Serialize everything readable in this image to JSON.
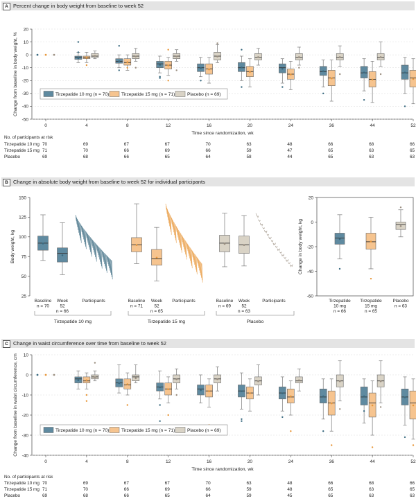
{
  "colors": {
    "tirz10": "#5f8aa0",
    "tirz15": "#f6c48f",
    "placebo": "#d9d3c6",
    "tirz10_dark": "#3a6a80",
    "tirz15_dark": "#e8973a",
    "placebo_dark": "#9a8e80"
  },
  "panels": {
    "a": {
      "letter": "A",
      "title": "Percent change in body weight from baseline to week 52"
    },
    "b": {
      "letter": "B",
      "title": "Change in absolute body weight from baseline to week 52 for individual participants"
    },
    "c": {
      "letter": "C",
      "title": "Change in waist circumference over time from baseline to week 52"
    }
  },
  "risk": {
    "header": "No. of participants at risk",
    "panel_a": [
      {
        "label": "Tirzepatide 10 mg",
        "values": [
          "70",
          "69",
          "67",
          "67",
          "70",
          "63",
          "48",
          "66",
          "68",
          "66"
        ]
      },
      {
        "label": "Tirzepatide 15 mg",
        "values": [
          "71",
          "70",
          "66",
          "69",
          "66",
          "59",
          "47",
          "65",
          "63",
          "65"
        ]
      },
      {
        "label": "Placebo",
        "values": [
          "69",
          "68",
          "66",
          "65",
          "64",
          "58",
          "44",
          "65",
          "63",
          "63"
        ]
      }
    ],
    "panel_c": [
      {
        "label": "Tirzepatide 10 mg",
        "values": [
          "70",
          "69",
          "67",
          "67",
          "70",
          "63",
          "48",
          "66",
          "68",
          "66"
        ]
      },
      {
        "label": "Tirzepatide 15 mg",
        "values": [
          "71",
          "70",
          "66",
          "69",
          "66",
          "59",
          "48",
          "65",
          "63",
          "65"
        ]
      },
      {
        "label": "Placebo",
        "values": [
          "69",
          "68",
          "66",
          "65",
          "64",
          "59",
          "45",
          "65",
          "63",
          "63"
        ]
      }
    ]
  },
  "chart_data": [
    {
      "id": "a",
      "type": "box",
      "title": "Percent change in body weight from baseline to week 52",
      "ylabel": "Change from baseline in body weight, %",
      "xlabel": "Time since randomization, wk",
      "ylim": [
        -50,
        20
      ],
      "yticks": [
        20,
        10,
        0,
        -10,
        -20,
        -30,
        -40,
        -50
      ],
      "categories": [
        "0",
        "4",
        "8",
        "12",
        "16",
        "20",
        "24",
        "36",
        "44",
        "52"
      ],
      "legend": [
        "Tirzepatide 10 mg (n = 70)",
        "Tirzepatide 15 mg (n = 71)",
        "Placebo (n = 69)"
      ],
      "series": [
        {
          "name": "Tirzepatide 10 mg",
          "boxes": [
            [
              0,
              0,
              0,
              0,
              0
            ],
            [
              -6,
              -3.5,
              -2,
              -1,
              2
            ],
            [
              -10,
              -6.5,
              -5,
              -3,
              0
            ],
            [
              -14,
              -10,
              -7,
              -5,
              -1
            ],
            [
              -17,
              -13,
              -10,
              -7,
              -2
            ],
            [
              -20,
              -13,
              -10,
              -6,
              -1
            ],
            [
              -22,
              -14,
              -10,
              -7,
              -3
            ],
            [
              -25,
              -16,
              -13,
              -9,
              -4
            ],
            [
              -28,
              -18,
              -14,
              -9,
              -3
            ],
            [
              -30,
              -19,
              -14,
              -8,
              -2
            ]
          ],
          "outliers": [
            [
              [
                0,
                0
              ]
            ],
            [
              [
                0.0,
                10
              ],
              [
                0.0,
                2
              ]
            ],
            [
              [
                0.0,
                -12
              ],
              [
                0.0,
                7
              ]
            ],
            [
              [
                0,
                -18
              ],
              [
                0,
                -17
              ]
            ],
            [
              [
                0,
                -20
              ]
            ],
            [
              [
                0,
                -25
              ],
              [
                0,
                4
              ]
            ],
            [
              [
                0,
                -25
              ]
            ],
            [
              [
                0,
                -30
              ]
            ],
            [
              [
                0,
                -35
              ]
            ],
            [
              [
                0,
                -40
              ]
            ]
          ]
        },
        {
          "name": "Tirzepatide 15 mg",
          "boxes": [
            [
              0,
              0,
              0,
              0,
              0
            ],
            [
              -6,
              -3,
              -2,
              -1,
              2
            ],
            [
              -12,
              -8,
              -6,
              -3,
              0
            ],
            [
              -16,
              -11,
              -8,
              -5,
              -2
            ],
            [
              -22,
              -15,
              -11,
              -7,
              -2
            ],
            [
              -25,
              -17,
              -13,
              -9,
              -3
            ],
            [
              -27,
              -19,
              -15,
              -11,
              -5
            ],
            [
              -36,
              -24,
              -18,
              -12,
              -4
            ],
            [
              -37,
              -25,
              -19,
              -13,
              -5
            ],
            [
              -38,
              -25,
              -18,
              -12,
              -3
            ]
          ],
          "outliers": [
            [],
            [
              [
                0,
                -8
              ]
            ],
            [
              [
                0,
                -10
              ]
            ],
            [
              [
                0,
                4
              ],
              [
                0,
                -20
              ]
            ],
            [],
            [],
            [],
            [],
            [],
            []
          ]
        },
        {
          "name": "Placebo",
          "boxes": [
            [
              0,
              0,
              0,
              0,
              0
            ],
            [
              -3,
              -2,
              -1,
              1,
              3
            ],
            [
              -5,
              -3,
              -1,
              1,
              5
            ],
            [
              -5,
              -3,
              -1,
              1,
              4
            ],
            [
              -6,
              -4,
              -1,
              2,
              8
            ],
            [
              -8,
              -4,
              -2,
              1,
              5
            ],
            [
              -8,
              -4,
              -2,
              1,
              6
            ],
            [
              -9,
              -4,
              -2,
              1,
              7
            ],
            [
              -9,
              -4,
              -2,
              1,
              10
            ],
            [
              -12,
              -5,
              -2,
              2,
              10
            ]
          ],
          "outliers": [
            [],
            [],
            [
              [
                0,
                -10
              ]
            ],
            [
              [
                0,
                -12
              ]
            ],
            [
              [
                0,
                9
              ]
            ],
            [],
            [
              [
                0,
                -10
              ]
            ],
            [
              [
                0,
                -15
              ]
            ],
            [
              [
                0,
                -15
              ]
            ],
            [
              [
                0,
                16
              ],
              [
                0,
                -14
              ]
            ]
          ]
        }
      ]
    },
    {
      "id": "b1",
      "type": "box+lines",
      "ylabel": "Body weight, kg",
      "ylim": [
        25,
        150
      ],
      "yticks": [
        150,
        125,
        100,
        75,
        50,
        25
      ],
      "x_labels": [
        "Baseline\nn = 70",
        "Week\n52\nn = 66",
        "Participants",
        "Baseline\nn = 71",
        "Week\n52\nn = 65",
        "Participants",
        "Baseline\nn = 69",
        "Week\n52\nn = 63",
        "Participants"
      ],
      "groups": [
        "Tirzepatide 10 mg",
        "Tirzepatide 15 mg",
        "Placebo"
      ],
      "boxes": [
        {
          "group": "Tirzepatide 10 mg",
          "baseline": [
            70,
            83,
            92,
            101,
            128
          ],
          "week52": [
            52,
            68,
            79,
            86,
            118
          ]
        },
        {
          "group": "Tirzepatide 15 mg",
          "baseline": [
            66,
            81,
            90,
            99,
            142
          ],
          "week52": [
            44,
            64,
            72,
            84,
            112
          ]
        },
        {
          "group": "Placebo",
          "baseline": [
            62,
            81,
            92,
            102,
            130
          ],
          "week52": [
            63,
            79,
            90,
            101,
            127
          ]
        }
      ]
    },
    {
      "id": "b2",
      "type": "box",
      "ylabel": "Change in body weight, kg",
      "ylim": [
        -60,
        20
      ],
      "yticks": [
        20,
        0,
        -20,
        -40,
        -60
      ],
      "categories": [
        "Tirzepatide\n10 mg\nn = 66",
        "Tirzepatide\n15 mg\nn = 65",
        "Placebo\nn = 63"
      ],
      "boxes": [
        [
          -30,
          -18,
          -13,
          -9,
          6
        ],
        [
          -38,
          -22,
          -16,
          -9,
          4
        ],
        [
          -12,
          -6,
          -2,
          0,
          10
        ]
      ]
    },
    {
      "id": "c",
      "type": "box",
      "ylabel": "Change from baseline in waist circumference, cm",
      "xlabel": "Time since randomization, wk",
      "ylim": [
        -40,
        10
      ],
      "yticks": [
        10,
        0,
        -10,
        -20,
        -30,
        -40
      ],
      "categories": [
        "0",
        "4",
        "8",
        "12",
        "16",
        "20",
        "24",
        "36",
        "44",
        "52"
      ],
      "legend": [
        "Tirzepatide 10 mg (n = 70)",
        "Tirzepatide 15 mg (n = 71)",
        "Placebo (n = 69)"
      ],
      "series": [
        {
          "name": "Tirzepatide 10 mg",
          "boxes": [
            [
              0,
              0,
              0,
              0,
              0
            ],
            [
              -7,
              -4,
              -2,
              -1,
              2
            ],
            [
              -9,
              -6,
              -4,
              -2,
              5
            ],
            [
              -12,
              -8,
              -6,
              -4,
              2
            ],
            [
              -14,
              -10,
              -7,
              -5,
              0
            ],
            [
              -17,
              -11,
              -8,
              -5,
              1
            ],
            [
              -18,
              -12,
              -9,
              -6,
              -1
            ],
            [
              -22,
              -14,
              -11,
              -7,
              -2
            ],
            [
              -24,
              -15,
              -11,
              -6,
              -2
            ],
            [
              -25,
              -15,
              -11,
              -7,
              -1
            ]
          ],
          "outliers": [
            [
              [
                0,
                0
              ]
            ],
            [],
            [],
            [
              [
                0,
                -15
              ],
              [
                0,
                -23
              ]
            ],
            [],
            [
              [
                0,
                -22
              ],
              [
                0,
                -23
              ]
            ],
            [
              [
                0,
                -21
              ]
            ],
            [
              [
                0,
                -28
              ]
            ],
            [
              [
                0,
                -18
              ]
            ],
            [
              [
                0,
                -31
              ]
            ]
          ]
        },
        {
          "name": "Tirzepatide 15 mg",
          "boxes": [
            [
              0,
              0,
              0,
              0,
              0
            ],
            [
              -7,
              -4,
              -3,
              -1,
              1
            ],
            [
              -10,
              -7,
              -5,
              -2,
              1
            ],
            [
              -14,
              -10,
              -7,
              -4,
              -1
            ],
            [
              -16,
              -11,
              -8,
              -5,
              -2
            ],
            [
              -18,
              -12,
              -9,
              -6,
              -2
            ],
            [
              -20,
              -14,
              -11,
              -7,
              -3
            ],
            [
              -28,
              -20,
              -14,
              -8,
              -2
            ],
            [
              -30,
              -21,
              -14,
              -9,
              -3
            ],
            [
              -32,
              -22,
              -14,
              -8,
              -2
            ]
          ],
          "outliers": [
            [],
            [
              [
                0,
                -10
              ],
              [
                0,
                -13
              ]
            ],
            [
              [
                0,
                -15
              ]
            ],
            [
              [
                0,
                -20
              ]
            ],
            [
              [
                0,
                -25
              ]
            ],
            [],
            [
              [
                0,
                -28
              ]
            ],
            [
              [
                0,
                -35
              ]
            ],
            [
              [
                0,
                -36
              ]
            ],
            [
              [
                0,
                -35
              ]
            ]
          ]
        },
        {
          "name": "Placebo",
          "boxes": [
            [
              0,
              0,
              0,
              0,
              0
            ],
            [
              -3,
              -2,
              -1,
              0,
              2
            ],
            [
              -4,
              -3,
              -1,
              0,
              5
            ],
            [
              -7,
              -4,
              -2,
              0,
              3
            ],
            [
              -8,
              -4,
              -2,
              0,
              4
            ],
            [
              -10,
              -5,
              -3,
              -1,
              5
            ],
            [
              -8,
              -4,
              -3,
              -1,
              3
            ],
            [
              -13,
              -6,
              -3,
              0,
              7
            ],
            [
              -14,
              -6,
              -3,
              0,
              7
            ],
            [
              -15,
              -6,
              -3,
              0,
              8
            ]
          ],
          "outliers": [
            [],
            [
              [
                0,
                6
              ]
            ],
            [],
            [
              [
                0,
                -10
              ]
            ],
            [],
            [],
            [],
            [
              [
                0,
                -17
              ]
            ],
            [
              [
                0,
                -16
              ]
            ],
            [
              [
                0,
                -17
              ]
            ]
          ]
        }
      ]
    }
  ]
}
